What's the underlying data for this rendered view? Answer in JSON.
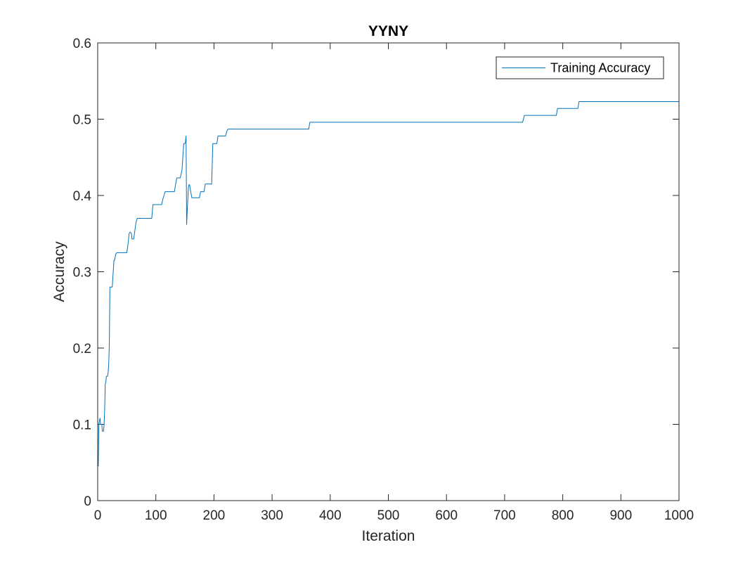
{
  "chart_data": {
    "type": "line",
    "title": "YYNY",
    "xlabel": "Iteration",
    "ylabel": "Accuracy",
    "xlim": [
      0,
      1000
    ],
    "ylim": [
      0,
      0.6
    ],
    "xticks": [
      0,
      100,
      200,
      300,
      400,
      500,
      600,
      700,
      800,
      900,
      1000
    ],
    "xtick_labels": [
      "0",
      "100",
      "200",
      "300",
      "400",
      "500",
      "600",
      "700",
      "800",
      "900",
      "1000"
    ],
    "yticks": [
      0,
      0.1,
      0.2,
      0.3,
      0.4,
      0.5,
      0.6
    ],
    "ytick_labels": [
      "0",
      "0.1",
      "0.2",
      "0.3",
      "0.4",
      "0.5",
      "0.6"
    ],
    "grid": false,
    "legend_position": "top-right",
    "series": [
      {
        "name": "Training Accuracy",
        "color": "#0072BD",
        "x": [
          1,
          2,
          3,
          4,
          5,
          6,
          7,
          8,
          9,
          10,
          11,
          12,
          13,
          14,
          15,
          16,
          17,
          18,
          19,
          20,
          21,
          22,
          24,
          25,
          28,
          29,
          31,
          33,
          34,
          50,
          52,
          54,
          56,
          58,
          59,
          62,
          65,
          66,
          68,
          70,
          72,
          93,
          95,
          110,
          112,
          114,
          116,
          118,
          132,
          134,
          136,
          138,
          142,
          144,
          145,
          146,
          148,
          150,
          151,
          152,
          153,
          154,
          155,
          156,
          157,
          158,
          160,
          162,
          164,
          166,
          175,
          177,
          183,
          185,
          196,
          197,
          198,
          200,
          205,
          207,
          215,
          220,
          222,
          224,
          363,
          365,
          731,
          734,
          789,
          791,
          826,
          828,
          1000
        ],
        "y": [
          0.045,
          0.1,
          0.105,
          0.108,
          0.1,
          0.1,
          0.1,
          0.091,
          0.091,
          0.091,
          0.1,
          0.12,
          0.153,
          0.155,
          0.163,
          0.163,
          0.163,
          0.168,
          0.18,
          0.205,
          0.28,
          0.28,
          0.28,
          0.28,
          0.315,
          0.315,
          0.323,
          0.325,
          0.325,
          0.325,
          0.335,
          0.35,
          0.352,
          0.35,
          0.343,
          0.343,
          0.36,
          0.365,
          0.37,
          0.37,
          0.37,
          0.37,
          0.388,
          0.388,
          0.395,
          0.4,
          0.405,
          0.405,
          0.405,
          0.415,
          0.423,
          0.423,
          0.423,
          0.43,
          0.433,
          0.445,
          0.468,
          0.468,
          0.47,
          0.478,
          0.362,
          0.38,
          0.395,
          0.41,
          0.414,
          0.414,
          0.405,
          0.397,
          0.397,
          0.397,
          0.397,
          0.405,
          0.405,
          0.415,
          0.415,
          0.44,
          0.468,
          0.468,
          0.468,
          0.478,
          0.478,
          0.478,
          0.484,
          0.487,
          0.487,
          0.496,
          0.496,
          0.505,
          0.505,
          0.514,
          0.514,
          0.523,
          0.523
        ]
      }
    ]
  }
}
